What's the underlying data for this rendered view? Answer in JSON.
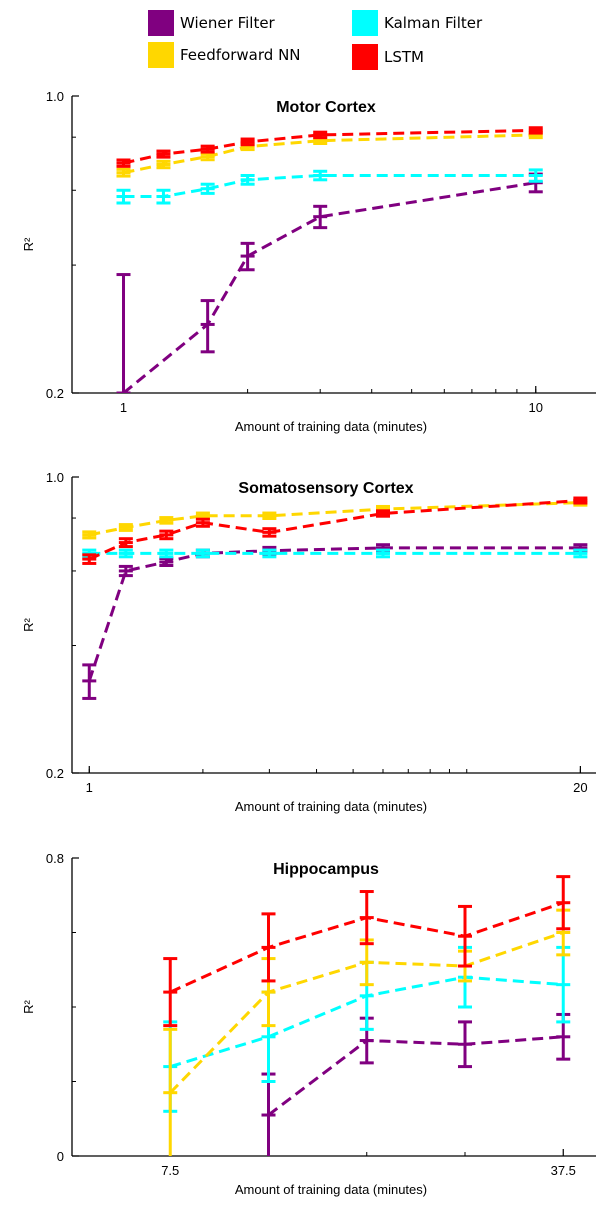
{
  "legend": [
    {
      "label": "Wiener Filter",
      "color": "#800080"
    },
    {
      "label": "Kalman Filter",
      "color": "#00ffff"
    },
    {
      "label": "Feedforward NN",
      "color": "#ffd700"
    },
    {
      "label": "LSTM",
      "color": "#ff0000"
    }
  ],
  "chart_data": [
    {
      "type": "line",
      "title": "Motor Cortex",
      "xlabel": "Amount of training data (minutes)",
      "ylabel": "R²",
      "xscale": "log",
      "yscale": "log",
      "xlim": [
        0.75,
        14
      ],
      "ylim": [
        0.2,
        1.0
      ],
      "xticks": [
        1,
        10
      ],
      "xtick_labels": [
        "1",
        "10"
      ],
      "yticks": [
        0.2,
        1.0
      ],
      "ytick_labels": [
        "0.2",
        "1.0"
      ],
      "series": [
        {
          "name": "Wiener Filter",
          "x": [
            1,
            1.6,
            2,
            3,
            10
          ],
          "y": [
            0.2,
            0.29,
            0.42,
            0.52,
            0.625
          ],
          "err": [
            0.0,
            0.04,
            0.03,
            0.03,
            0.03
          ],
          "err_lo": [
            null,
            null,
            null,
            null,
            null
          ],
          "err_hi": [
            0.38,
            null,
            null,
            null,
            null
          ]
        },
        {
          "name": "Kalman Filter",
          "x": [
            1,
            1.25,
            1.6,
            2,
            3,
            10
          ],
          "y": [
            0.58,
            0.58,
            0.605,
            0.635,
            0.65,
            0.65
          ],
          "err": [
            0.02,
            0.02,
            0.015,
            0.015,
            0.015,
            0.02
          ]
        },
        {
          "name": "Feedforward NN",
          "x": [
            1,
            1.25,
            1.6,
            2,
            3,
            10
          ],
          "y": [
            0.66,
            0.69,
            0.72,
            0.76,
            0.785,
            0.81
          ],
          "err": [
            0.012,
            0.012,
            0.012,
            0.012,
            0.012,
            0.012
          ]
        },
        {
          "name": "LSTM",
          "x": [
            1,
            1.25,
            1.6,
            2,
            3,
            10
          ],
          "y": [
            0.695,
            0.73,
            0.75,
            0.78,
            0.81,
            0.83
          ],
          "err": [
            0.012,
            0.012,
            0.012,
            0.012,
            0.012,
            0.012
          ]
        }
      ]
    },
    {
      "type": "line",
      "title": "Somatosensory Cortex",
      "xlabel": "Amount of training data (minutes)",
      "ylabel": "R²",
      "xscale": "log",
      "yscale": "log",
      "xlim": [
        0.9,
        22
      ],
      "ylim": [
        0.2,
        1.0
      ],
      "xticks": [
        1,
        20
      ],
      "xtick_labels": [
        "1",
        "20"
      ],
      "yticks": [
        0.2,
        1.0
      ],
      "ytick_labels": [
        "0.2",
        "1.0"
      ],
      "series": [
        {
          "name": "Wiener Filter",
          "x": [
            1,
            1.25,
            1.6,
            2,
            3,
            6,
            20
          ],
          "y": [
            0.33,
            0.6,
            0.63,
            0.66,
            0.67,
            0.68,
            0.68
          ],
          "err": [
            0.03,
            0.015,
            0.012,
            0.012,
            0.012,
            0.012,
            0.012
          ]
        },
        {
          "name": "Kalman Filter",
          "x": [
            1,
            1.25,
            1.6,
            2,
            3,
            6,
            20
          ],
          "y": [
            0.66,
            0.66,
            0.66,
            0.66,
            0.66,
            0.66,
            0.66
          ],
          "err": [
            0.012,
            0.012,
            0.012,
            0.012,
            0.012,
            0.012,
            0.012
          ]
        },
        {
          "name": "Feedforward NN",
          "x": [
            1,
            1.25,
            1.6,
            2,
            3,
            6,
            20
          ],
          "y": [
            0.73,
            0.76,
            0.79,
            0.81,
            0.81,
            0.84,
            0.87
          ],
          "err": [
            0.012,
            0.012,
            0.012,
            0.012,
            0.012,
            0.012,
            0.012
          ]
        },
        {
          "name": "LSTM",
          "x": [
            1,
            1.25,
            1.6,
            2,
            3,
            6,
            20
          ],
          "y": [
            0.64,
            0.7,
            0.73,
            0.78,
            0.74,
            0.82,
            0.88
          ],
          "err": [
            0.015,
            0.015,
            0.015,
            0.015,
            0.015,
            0.012,
            0.012
          ]
        }
      ]
    },
    {
      "type": "line",
      "title": "Hippocampus",
      "xlabel": "Amount of training data (minutes)",
      "ylabel": "R²",
      "xscale": "linear",
      "yscale": "linear",
      "xlim": [
        0,
        40
      ],
      "ylim": [
        0,
        0.8
      ],
      "xticks": [
        7.5,
        37.5
      ],
      "xtick_labels": [
        "7.5",
        "37.5"
      ],
      "yticks": [
        0,
        0.8
      ],
      "ytick_labels": [
        "0",
        "0.8"
      ],
      "series": [
        {
          "name": "Wiener Filter",
          "x": [
            15,
            22.5,
            30,
            37.5
          ],
          "y": [
            0.11,
            0.31,
            0.3,
            0.32
          ],
          "err": [
            0.11,
            0.06,
            0.06,
            0.06
          ]
        },
        {
          "name": "Kalman Filter",
          "x": [
            7.5,
            15,
            22.5,
            30,
            37.5
          ],
          "y": [
            0.24,
            0.32,
            0.43,
            0.48,
            0.46
          ],
          "err": [
            0.12,
            0.12,
            0.09,
            0.08,
            0.1
          ]
        },
        {
          "name": "Feedforward NN",
          "x": [
            7.5,
            15,
            22.5,
            30,
            37.5
          ],
          "y": [
            0.17,
            0.44,
            0.52,
            0.51,
            0.6
          ],
          "err": [
            0.17,
            0.09,
            0.06,
            0.04,
            0.06
          ]
        },
        {
          "name": "LSTM",
          "x": [
            7.5,
            15,
            22.5,
            30,
            37.5
          ],
          "y": [
            0.44,
            0.56,
            0.64,
            0.59,
            0.68
          ],
          "err": [
            0.09,
            0.09,
            0.07,
            0.08,
            0.07
          ]
        }
      ]
    }
  ]
}
